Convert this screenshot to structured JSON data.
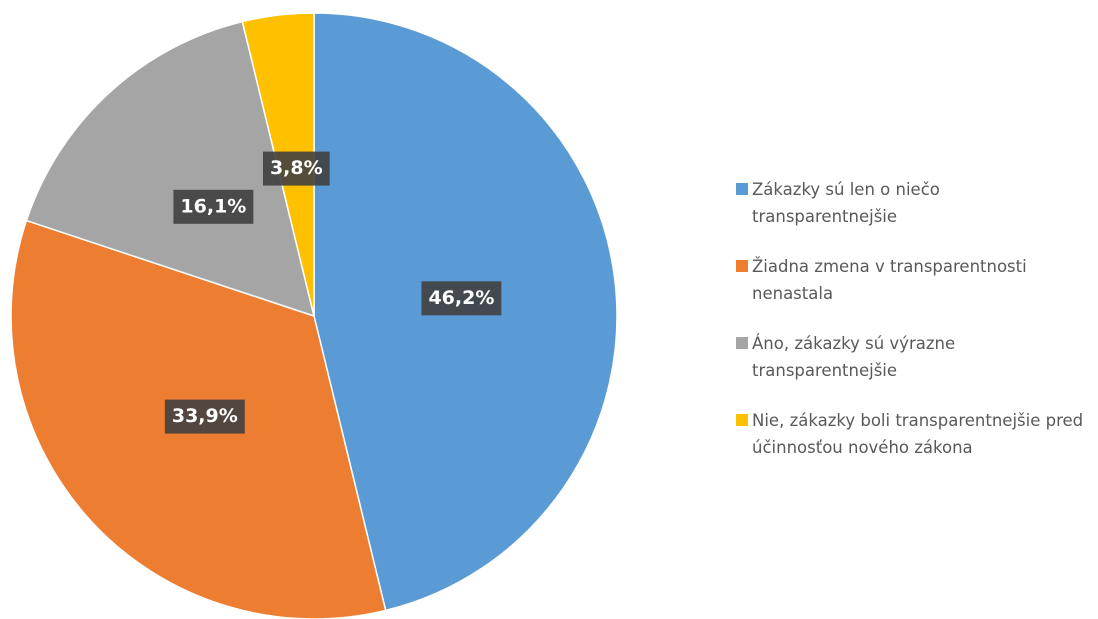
{
  "chart_data": {
    "type": "pie",
    "categories": [
      "Zákazky sú len o niečo transparentnejšie",
      "Žiadna zmena v transparentnosti nenastala",
      "Áno, zákazky sú výrazne transparentnejšie",
      "Nie, zákazky boli transparentnejšie pred účinnosťou nového zákona"
    ],
    "values": [
      46.2,
      33.9,
      16.1,
      3.8
    ],
    "value_labels": [
      "46,2%",
      "33,9%",
      "16,1%",
      "3,8%"
    ],
    "colors": [
      "#5b9bd5",
      "#ed7d31",
      "#a5a5a5",
      "#ffc000"
    ],
    "legend": "right"
  }
}
